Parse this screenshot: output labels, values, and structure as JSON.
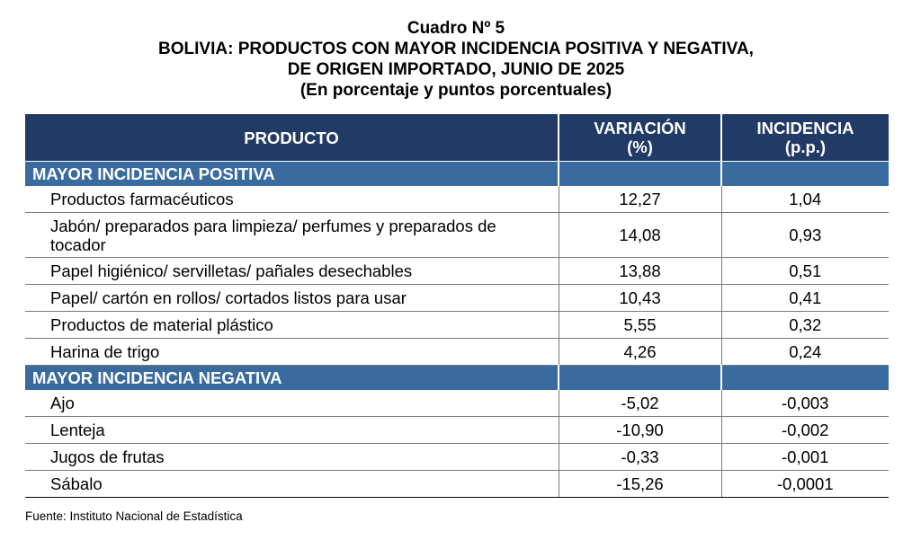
{
  "document": {
    "label": "Cuadro Nº 5",
    "title_line1": "BOLIVIA: PRODUCTOS CON MAYOR INCIDENCIA POSITIVA Y NEGATIVA,",
    "title_line2": "DE ORIGEN IMPORTADO, JUNIO DE 2025",
    "subtitle": "(En porcentaje y puntos porcentuales)"
  },
  "table": {
    "headers": {
      "producto": "PRODUCTO",
      "variacion_line1": "VARIACIÓN",
      "variacion_line2": "(%)",
      "incidencia_line1": "INCIDENCIA",
      "incidencia_line2": "(p.p.)"
    },
    "sections": [
      {
        "title": "MAYOR INCIDENCIA POSITIVA",
        "rows": [
          {
            "producto": "Productos farmacéuticos",
            "variacion": "12,27",
            "incidencia": "1,04"
          },
          {
            "producto": "Jabón/ preparados para limpieza/ perfumes y preparados de tocador",
            "variacion": "14,08",
            "incidencia": "0,93"
          },
          {
            "producto": "Papel higiénico/ servilletas/ pañales desechables",
            "variacion": "13,88",
            "incidencia": "0,51"
          },
          {
            "producto": "Papel/ cartón en rollos/ cortados listos para usar",
            "variacion": "10,43",
            "incidencia": "0,41"
          },
          {
            "producto": "Productos de material plástico",
            "variacion": "5,55",
            "incidencia": "0,32"
          },
          {
            "producto": "Harina de trigo",
            "variacion": "4,26",
            "incidencia": "0,24"
          }
        ]
      },
      {
        "title": "MAYOR INCIDENCIA NEGATIVA",
        "rows": [
          {
            "producto": "Ajo",
            "variacion": "-5,02",
            "incidencia": "-0,003"
          },
          {
            "producto": "Lenteja",
            "variacion": "-10,90",
            "incidencia": "-0,002"
          },
          {
            "producto": "Jugos de frutas",
            "variacion": "-0,33",
            "incidencia": "-0,001"
          },
          {
            "producto": "Sábalo",
            "variacion": "-15,26",
            "incidencia": "-0,0001"
          }
        ]
      }
    ]
  },
  "footer": {
    "source": "Fuente: Instituto Nacional de Estadística"
  },
  "colors": {
    "header_bg": "#213a66",
    "section_bg": "#3a6b9f"
  }
}
